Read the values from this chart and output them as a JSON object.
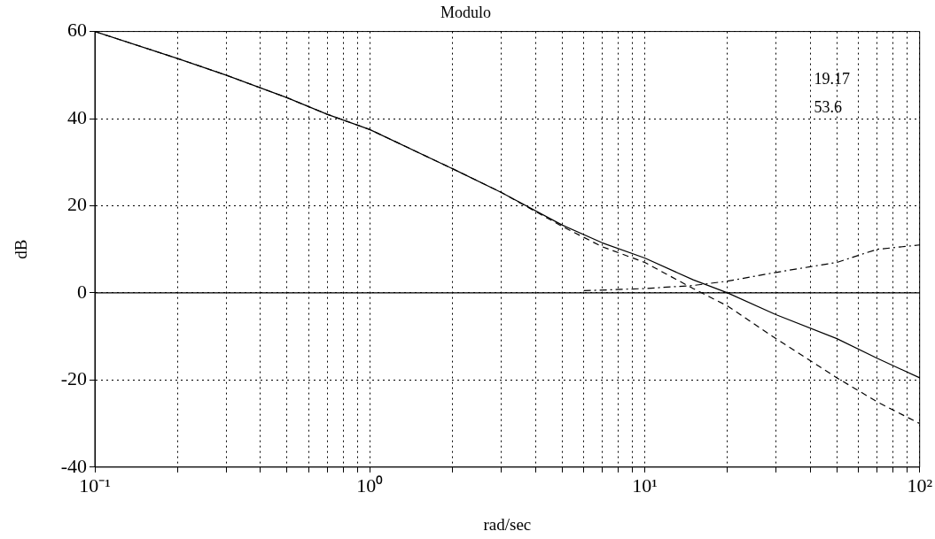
{
  "chart_data": {
    "type": "line",
    "title": "Modulo",
    "xlabel": "rad/sec",
    "ylabel": "dB",
    "annotations": [
      "19.17",
      "53.6"
    ],
    "xlim": [
      0.1,
      100
    ],
    "ylim": [
      -40,
      60
    ],
    "xticks": [
      {
        "value": 0.1,
        "label": "10⁻¹"
      },
      {
        "value": 0.2,
        "label": null
      },
      {
        "value": 0.3,
        "label": null
      },
      {
        "value": 0.4,
        "label": null
      },
      {
        "value": 0.5,
        "label": null
      },
      {
        "value": 0.6,
        "label": null
      },
      {
        "value": 0.7,
        "label": null
      },
      {
        "value": 0.8,
        "label": null
      },
      {
        "value": 0.9,
        "label": null
      },
      {
        "value": 1,
        "label": "10⁰"
      },
      {
        "value": 2,
        "label": null
      },
      {
        "value": 3,
        "label": null
      },
      {
        "value": 4,
        "label": null
      },
      {
        "value": 5,
        "label": null
      },
      {
        "value": 6,
        "label": null
      },
      {
        "value": 7,
        "label": null
      },
      {
        "value": 8,
        "label": null
      },
      {
        "value": 9,
        "label": null
      },
      {
        "value": 10,
        "label": "10¹"
      },
      {
        "value": 20,
        "label": null
      },
      {
        "value": 30,
        "label": null
      },
      {
        "value": 40,
        "label": null
      },
      {
        "value": 50,
        "label": null
      },
      {
        "value": 60,
        "label": null
      },
      {
        "value": 70,
        "label": null
      },
      {
        "value": 80,
        "label": null
      },
      {
        "value": 90,
        "label": null
      },
      {
        "value": 100,
        "label": "10²"
      }
    ],
    "yticks": [
      -40,
      -20,
      0,
      20,
      40,
      60
    ],
    "log": "x",
    "grid": true,
    "marker": "none",
    "ref_lines": [
      {
        "axis": "y",
        "value": 0,
        "color": "#000000",
        "line_style": "solid"
      }
    ],
    "series": [
      {
        "color": "#000000",
        "line_style": "solid",
        "x": [
          0.1,
          0.2,
          0.3,
          0.5,
          0.7,
          1,
          2,
          3,
          5,
          7,
          10,
          15,
          20,
          30,
          50,
          70,
          100
        ],
        "values": [
          60,
          53.8,
          50,
          44.8,
          41,
          37.5,
          28.5,
          23.1,
          15.6,
          11.5,
          8,
          3,
          0,
          -5,
          -10.5,
          -15,
          -19.5
        ]
      },
      {
        "color": "#000000",
        "line_style": "dashed",
        "x": [
          0.1,
          0.2,
          0.3,
          0.5,
          0.7,
          1,
          2,
          3,
          5,
          7,
          10,
          15,
          20,
          30,
          50,
          70,
          100
        ],
        "values": [
          60,
          53.8,
          50,
          44.8,
          41,
          37.5,
          28.5,
          23.1,
          15.3,
          10.6,
          7,
          1,
          -3,
          -10.5,
          -19.5,
          -25,
          -30
        ]
      },
      {
        "color": "#000000",
        "line_style": "dashdot",
        "x": [
          6,
          10,
          15,
          20,
          30,
          40,
          50,
          70,
          100
        ],
        "values": [
          0.5,
          1,
          1.7,
          2.7,
          4.7,
          6,
          7,
          10,
          11
        ]
      }
    ]
  }
}
